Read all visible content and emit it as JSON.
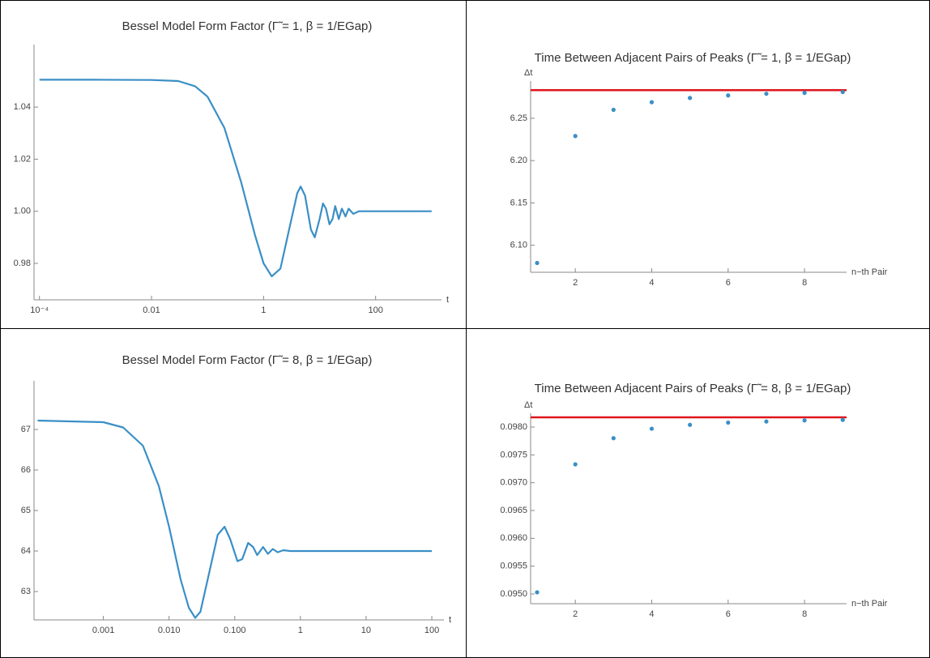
{
  "chart_data": [
    {
      "type": "line",
      "title": "Bessel Model Form Factor (Γ̃ = 1, β = 1/EGap)",
      "x_label": "t",
      "xscale": "log",
      "color": "#3a8fc6",
      "x": [
        0.0001,
        0.001,
        0.01,
        0.03,
        0.06,
        0.1,
        0.2,
        0.4,
        0.7,
        1,
        1.4,
        2,
        3,
        4,
        4.6,
        5.5,
        7,
        8.2,
        10,
        11.5,
        13,
        15,
        17,
        19,
        22,
        25,
        29,
        33,
        40,
        50,
        1000
      ],
      "values": [
        1.0505,
        1.0505,
        1.0504,
        1.05,
        1.048,
        1.044,
        1.032,
        1.011,
        0.991,
        0.98,
        0.975,
        0.978,
        0.995,
        1.007,
        1.0095,
        1.006,
        0.993,
        0.99,
        0.997,
        1.003,
        1.001,
        0.995,
        0.997,
        1.002,
        0.997,
        1.001,
        0.998,
        1.001,
        0.999,
        1.0,
        1.0
      ],
      "xlim": [
        8e-05,
        1500
      ],
      "xticks": [
        {
          "value": 0.0001,
          "label": "10⁻⁴"
        },
        0.01,
        1,
        100
      ],
      "ylim": [
        0.966,
        1.064
      ],
      "yticks": [
        0.98,
        {
          "value": 1,
          "label": "1.00"
        },
        1.02,
        1.04
      ]
    },
    {
      "type": "scatter",
      "title": "Time Between Adjacent Pairs of Peaks (Γ̃ = 1, β = 1/EGap)",
      "x_label": "n−th Pair",
      "y_label": "Δt",
      "color": "#3a8fc6",
      "x": [
        1,
        2,
        3,
        4,
        5,
        6,
        7,
        8,
        9
      ],
      "values": [
        6.079,
        6.229,
        6.26,
        6.269,
        6.274,
        6.277,
        6.279,
        6.28,
        6.281
      ],
      "reference_line": {
        "value": 6.2832,
        "color": "#e0161c"
      },
      "xlim": [
        0.83,
        9.1
      ],
      "xticks": [
        2,
        4,
        6,
        8
      ],
      "ylim": [
        6.068,
        6.294
      ],
      "yticks": [
        {
          "value": 6.1,
          "label": "6.10"
        },
        6.15,
        {
          "value": 6.2,
          "label": "6.20"
        },
        6.25
      ]
    },
    {
      "type": "line",
      "title": "Bessel Model Form Factor (Γ̃ = 8, β = 1/EGap)",
      "x_label": "t",
      "xscale": "log",
      "color": "#3a8fc6",
      "x": [
        0.0001,
        0.001,
        0.002,
        0.004,
        0.007,
        0.01,
        0.015,
        0.02,
        0.025,
        0.03,
        0.04,
        0.055,
        0.07,
        0.085,
        0.11,
        0.13,
        0.16,
        0.19,
        0.22,
        0.27,
        0.32,
        0.38,
        0.45,
        0.55,
        0.7,
        100
      ],
      "values": [
        67.22,
        67.18,
        67.05,
        66.6,
        65.6,
        64.6,
        63.3,
        62.6,
        62.35,
        62.5,
        63.4,
        64.4,
        64.6,
        64.3,
        63.75,
        63.8,
        64.2,
        64.1,
        63.9,
        64.1,
        63.93,
        64.05,
        63.97,
        64.02,
        64.0,
        64.0
      ],
      "xlim": [
        8.8e-05,
        153
      ],
      "xticks": [
        0.001,
        {
          "value": 0.01,
          "label": "0.010"
        },
        {
          "value": 0.1,
          "label": "0.100"
        },
        1,
        10,
        100
      ],
      "ylim": [
        62.3,
        68.2
      ],
      "yticks": [
        63,
        64,
        65,
        66,
        67
      ]
    },
    {
      "type": "scatter",
      "title": "Time Between Adjacent Pairs of Peaks (Γ̃ = 8, β = 1/EGap)",
      "x_label": "n−th Pair",
      "y_label": "Δt",
      "color": "#3a8fc6",
      "x": [
        1,
        2,
        3,
        4,
        5,
        6,
        7,
        8,
        9
      ],
      "values": [
        0.09503,
        0.09733,
        0.0978,
        0.09797,
        0.09804,
        0.09808,
        0.0981,
        0.09812,
        0.09813
      ],
      "reference_line": {
        "value": 0.098175,
        "color": "#e0161c"
      },
      "xlim": [
        0.83,
        9.1
      ],
      "xticks": [
        2,
        4,
        6,
        8
      ],
      "ylim": [
        0.094825,
        0.098248
      ],
      "yticks": [
        {
          "value": 0.095,
          "label": "0.0950"
        },
        0.0955,
        {
          "value": 0.096,
          "label": "0.0960"
        },
        0.0965,
        {
          "value": 0.097,
          "label": "0.0970"
        },
        0.0975,
        {
          "value": 0.098,
          "label": "0.0980"
        }
      ]
    }
  ]
}
